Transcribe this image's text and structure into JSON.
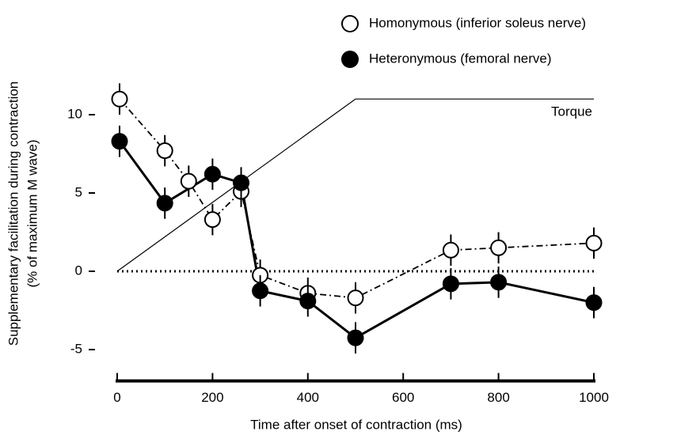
{
  "chart_data": {
    "type": "line",
    "xlabel": "Time after onset of contraction (ms)",
    "ylabel": [
      "Supplementary facilitation during contraction",
      "(% of maximum M wave)"
    ],
    "xlim": [
      0,
      1000
    ],
    "xticks": [
      0,
      200,
      400,
      600,
      800,
      1000
    ],
    "ylim": [
      -7,
      12
    ],
    "yticks": [
      -5,
      0,
      5,
      10
    ],
    "zero_line": 0,
    "torque": {
      "label": "Torque",
      "x": [
        0,
        500,
        1000
      ],
      "values": [
        0,
        11,
        11
      ]
    },
    "series": [
      {
        "name": "Homonymous (inferior soleus nerve)",
        "marker": "open",
        "style": "dashdot",
        "color": "#000000",
        "x": [
          5,
          100,
          150,
          200,
          260,
          300,
          400,
          500,
          700,
          800,
          1000
        ],
        "values": [
          11.0,
          7.7,
          5.75,
          3.3,
          5.1,
          -0.25,
          -1.4,
          -1.7,
          1.35,
          1.5,
          1.8
        ],
        "errors": [
          1,
          1,
          1,
          1,
          1,
          1,
          1,
          1,
          1,
          1,
          1
        ]
      },
      {
        "name": "Heteronymous (femoral nerve)",
        "marker": "filled",
        "style": "solid",
        "color": "#000000",
        "x": [
          5,
          100,
          200,
          260,
          300,
          400,
          500,
          700,
          800,
          1000
        ],
        "values": [
          8.3,
          4.35,
          6.2,
          5.65,
          -1.25,
          -1.9,
          -4.25,
          -0.8,
          -0.7,
          -2.0
        ],
        "errors": [
          1,
          1,
          1,
          1,
          1,
          1,
          1,
          1,
          1,
          1
        ]
      }
    ]
  }
}
